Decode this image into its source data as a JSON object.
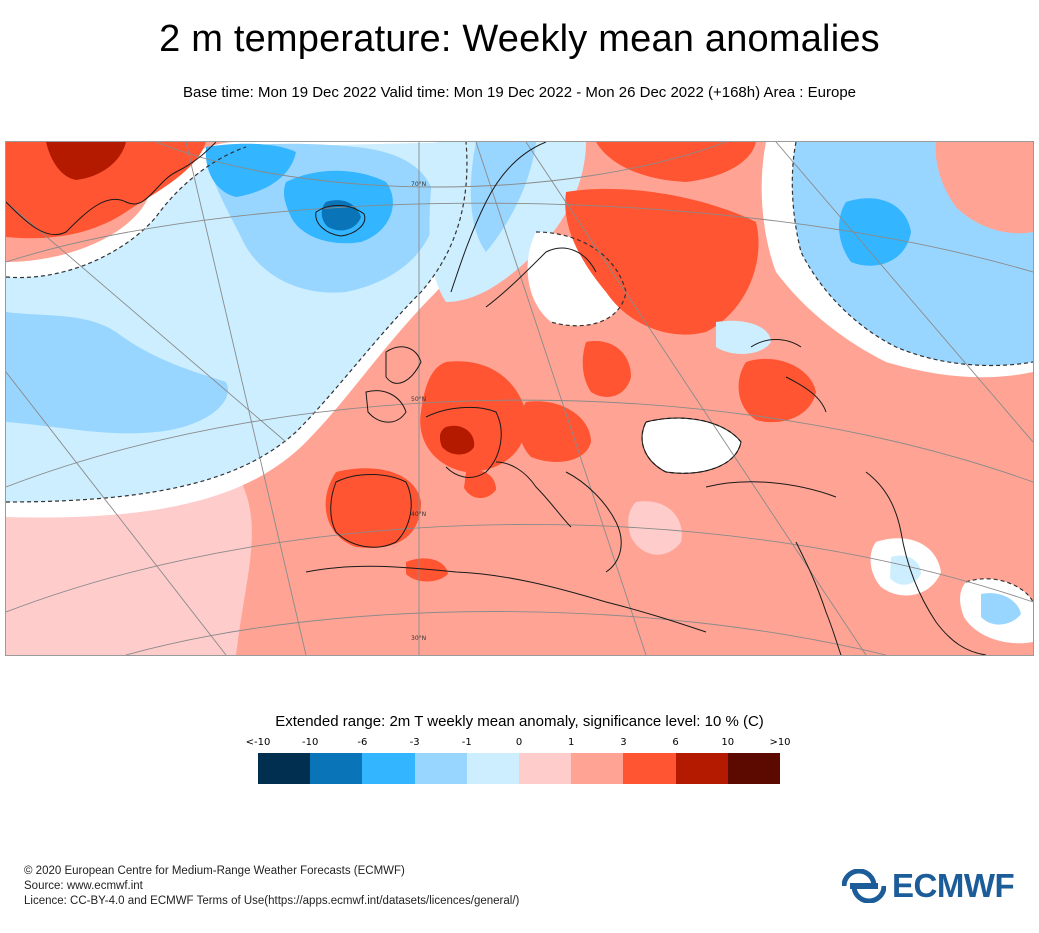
{
  "header": {
    "title": "2 m temperature: Weekly mean anomalies",
    "subtitle": "Base time: Mon 19 Dec 2022 Valid time: Mon 19 Dec 2022 - Mon 26 Dec 2022 (+168h) Area : Europe"
  },
  "map": {
    "latitude_labels": [
      "70°N",
      "50°N",
      "40°N",
      "30°N"
    ]
  },
  "legend": {
    "title": "Extended range: 2m T weekly mean anomaly, significance level: 10 % (C)",
    "ticks": [
      "<-10",
      "-10",
      "-6",
      "-3",
      "-1",
      "0",
      "1",
      "3",
      "6",
      "10",
      ">10"
    ],
    "colors": [
      "#002f50",
      "#0a74b8",
      "#33b5ff",
      "#99d6ff",
      "#cceeff",
      "#ffcccc",
      "#ffa494",
      "#ff5533",
      "#b31a00",
      "#5c0a00"
    ]
  },
  "footer": {
    "line1": "© 2020 European Centre for Medium-Range Weather Forecasts (ECMWF)",
    "line2": "Source: www.ecmwf.int",
    "line3": "Licence: CC-BY-4.0 and ECMWF Terms of Use(https://apps.ecmwf.int/datasets/licences/general/)"
  },
  "logo": {
    "text": "ECMWF",
    "color": "#1c5d99"
  }
}
